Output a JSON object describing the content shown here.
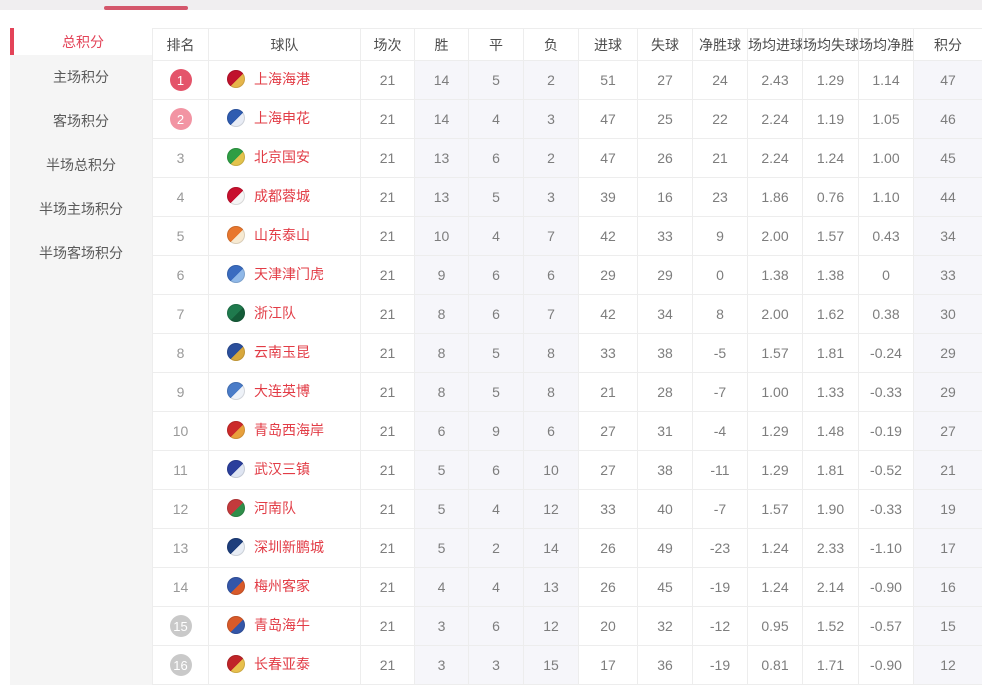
{
  "colors": {
    "top_indicator": "#d4566b",
    "sidebar_active": "#e34358",
    "team_name": "#e23c46",
    "badge_top1": "#e4546a",
    "badge_top2": "#f294a3",
    "badge_bottom": "#c9c9c9",
    "column_tint": "#f6f6fa"
  },
  "sidebar": {
    "items": [
      {
        "label": "总积分",
        "active": true
      },
      {
        "label": "主场积分",
        "active": false
      },
      {
        "label": "客场积分",
        "active": false
      },
      {
        "label": "半场总积分",
        "active": false
      },
      {
        "label": "半场主场积分",
        "active": false
      },
      {
        "label": "半场客场积分",
        "active": false
      }
    ]
  },
  "table": {
    "headers": [
      "排名",
      "球队",
      "场次",
      "胜",
      "平",
      "负",
      "进球",
      "失球",
      "净胜球",
      "场均进球",
      "场均失球",
      "场均净胜",
      "积分"
    ],
    "rows": [
      {
        "rank": "1",
        "badge": "top1",
        "team": "上海海港",
        "logo": [
          "#c0122c",
          "#e6b54a"
        ],
        "p": "21",
        "w": "14",
        "d": "5",
        "l": "2",
        "gf": "51",
        "ga": "27",
        "gd": "24",
        "agf": "2.43",
        "aga": "1.29",
        "agd": "1.14",
        "pts": "47"
      },
      {
        "rank": "2",
        "badge": "top2",
        "team": "上海申花",
        "logo": [
          "#2f5cb0",
          "#e8ecf5"
        ],
        "p": "21",
        "w": "14",
        "d": "4",
        "l": "3",
        "gf": "47",
        "ga": "25",
        "gd": "22",
        "agf": "2.24",
        "aga": "1.19",
        "agd": "1.05",
        "pts": "46"
      },
      {
        "rank": "3",
        "badge": "none",
        "team": "北京国安",
        "logo": [
          "#2f9e44",
          "#e3c34c"
        ],
        "p": "21",
        "w": "13",
        "d": "6",
        "l": "2",
        "gf": "47",
        "ga": "26",
        "gd": "21",
        "agf": "2.24",
        "aga": "1.24",
        "agd": "1.00",
        "pts": "45"
      },
      {
        "rank": "4",
        "badge": "none",
        "team": "成都蓉城",
        "logo": [
          "#c8102e",
          "#f5f5f5"
        ],
        "p": "21",
        "w": "13",
        "d": "5",
        "l": "3",
        "gf": "39",
        "ga": "16",
        "gd": "23",
        "agf": "1.86",
        "aga": "0.76",
        "agd": "1.10",
        "pts": "44"
      },
      {
        "rank": "5",
        "badge": "none",
        "team": "山东泰山",
        "logo": [
          "#e8772e",
          "#f7ead2"
        ],
        "p": "21",
        "w": "10",
        "d": "4",
        "l": "7",
        "gf": "42",
        "ga": "33",
        "gd": "9",
        "agf": "2.00",
        "aga": "1.57",
        "agd": "0.43",
        "pts": "34"
      },
      {
        "rank": "6",
        "badge": "none",
        "team": "天津津门虎",
        "logo": [
          "#3a6cc0",
          "#8fb8e8"
        ],
        "p": "21",
        "w": "9",
        "d": "6",
        "l": "6",
        "gf": "29",
        "ga": "29",
        "gd": "0",
        "agf": "1.38",
        "aga": "1.38",
        "agd": "0",
        "pts": "33"
      },
      {
        "rank": "7",
        "badge": "none",
        "team": "浙江队",
        "logo": [
          "#1f7a4d",
          "#145c38"
        ],
        "p": "21",
        "w": "8",
        "d": "6",
        "l": "7",
        "gf": "42",
        "ga": "34",
        "gd": "8",
        "agf": "2.00",
        "aga": "1.62",
        "agd": "0.38",
        "pts": "30"
      },
      {
        "rank": "8",
        "badge": "none",
        "team": "云南玉昆",
        "logo": [
          "#2b4f9c",
          "#d8a83c"
        ],
        "p": "21",
        "w": "8",
        "d": "5",
        "l": "8",
        "gf": "33",
        "ga": "38",
        "gd": "-5",
        "agf": "1.57",
        "aga": "1.81",
        "agd": "-0.24",
        "pts": "29"
      },
      {
        "rank": "9",
        "badge": "none",
        "team": "大连英博",
        "logo": [
          "#4a7cc8",
          "#eef2f8"
        ],
        "p": "21",
        "w": "8",
        "d": "5",
        "l": "8",
        "gf": "21",
        "ga": "28",
        "gd": "-7",
        "agf": "1.00",
        "aga": "1.33",
        "agd": "-0.33",
        "pts": "29"
      },
      {
        "rank": "10",
        "badge": "none",
        "team": "青岛西海岸",
        "logo": [
          "#cc2a2a",
          "#e8a03c"
        ],
        "p": "21",
        "w": "6",
        "d": "9",
        "l": "6",
        "gf": "27",
        "ga": "31",
        "gd": "-4",
        "agf": "1.29",
        "aga": "1.48",
        "agd": "-0.19",
        "pts": "27"
      },
      {
        "rank": "11",
        "badge": "none",
        "team": "武汉三镇",
        "logo": [
          "#2b3f9c",
          "#dfe5f2"
        ],
        "p": "21",
        "w": "5",
        "d": "6",
        "l": "10",
        "gf": "27",
        "ga": "38",
        "gd": "-11",
        "agf": "1.29",
        "aga": "1.81",
        "agd": "-0.52",
        "pts": "21"
      },
      {
        "rank": "12",
        "badge": "none",
        "team": "河南队",
        "logo": [
          "#c43a3c",
          "#2f8e4a"
        ],
        "p": "21",
        "w": "5",
        "d": "4",
        "l": "12",
        "gf": "33",
        "ga": "40",
        "gd": "-7",
        "agf": "1.57",
        "aga": "1.90",
        "agd": "-0.33",
        "pts": "19"
      },
      {
        "rank": "13",
        "badge": "none",
        "team": "深圳新鹏城",
        "logo": [
          "#1d3e7c",
          "#e8edf5"
        ],
        "p": "21",
        "w": "5",
        "d": "2",
        "l": "14",
        "gf": "26",
        "ga": "49",
        "gd": "-23",
        "agf": "1.24",
        "aga": "2.33",
        "agd": "-1.10",
        "pts": "17"
      },
      {
        "rank": "14",
        "badge": "none",
        "team": "梅州客家",
        "logo": [
          "#3456a8",
          "#d85a2a"
        ],
        "p": "21",
        "w": "4",
        "d": "4",
        "l": "13",
        "gf": "26",
        "ga": "45",
        "gd": "-19",
        "agf": "1.24",
        "aga": "2.14",
        "agd": "-0.90",
        "pts": "16"
      },
      {
        "rank": "15",
        "badge": "bottom",
        "team": "青岛海牛",
        "logo": [
          "#d85a2a",
          "#3456a8"
        ],
        "p": "21",
        "w": "3",
        "d": "6",
        "l": "12",
        "gf": "20",
        "ga": "32",
        "gd": "-12",
        "agf": "0.95",
        "aga": "1.52",
        "agd": "-0.57",
        "pts": "15"
      },
      {
        "rank": "16",
        "badge": "bottom",
        "team": "长春亚泰",
        "logo": [
          "#c02428",
          "#e8c04c"
        ],
        "p": "21",
        "w": "3",
        "d": "3",
        "l": "15",
        "gf": "17",
        "ga": "36",
        "gd": "-19",
        "agf": "0.81",
        "aga": "1.71",
        "agd": "-0.90",
        "pts": "12"
      }
    ]
  }
}
